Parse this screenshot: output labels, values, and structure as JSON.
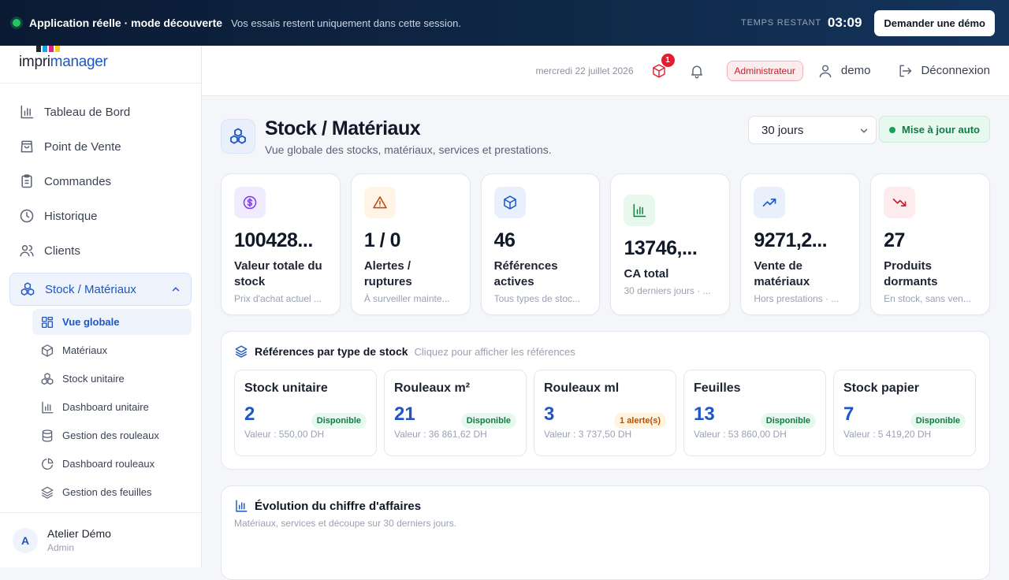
{
  "banner": {
    "title": "Application réelle · mode découverte",
    "subtitle": "Vos essais restent uniquement dans cette session.",
    "timer_label": "TEMPS RESTANT",
    "timer_value": "03:09",
    "cta": "Demander une démo"
  },
  "logo": {
    "part1": "impri",
    "part2": "manager"
  },
  "sidebar": {
    "items": [
      {
        "label": "Tableau de Bord",
        "icon": "chart-bar-icon"
      },
      {
        "label": "Point de Vente",
        "icon": "shopping-bag-icon"
      },
      {
        "label": "Commandes",
        "icon": "clipboard-icon"
      },
      {
        "label": "Historique",
        "icon": "clock-icon"
      },
      {
        "label": "Clients",
        "icon": "users-icon"
      },
      {
        "label": "Stock / Matériaux",
        "icon": "boxes-icon"
      }
    ],
    "sub_items": [
      {
        "label": "Vue globale",
        "icon": "grid-icon"
      },
      {
        "label": "Matériaux",
        "icon": "package-icon"
      },
      {
        "label": "Stock unitaire",
        "icon": "boxes-icon"
      },
      {
        "label": "Dashboard unitaire",
        "icon": "chart-bar-icon"
      },
      {
        "label": "Gestion des rouleaux",
        "icon": "database-icon"
      },
      {
        "label": "Dashboard rouleaux",
        "icon": "pie-chart-icon"
      },
      {
        "label": "Gestion des feuilles",
        "icon": "layers-icon"
      }
    ],
    "user": {
      "initial": "A",
      "name": "Atelier Démo",
      "role": "Admin"
    }
  },
  "topbar": {
    "date": "mercredi 22 juillet 2026",
    "notification_count": "1",
    "role": "Administrateur",
    "username": "demo",
    "logout": "Déconnexion"
  },
  "page": {
    "title": "Stock / Matériaux",
    "subtitle": "Vue globale des stocks, matériaux, services et prestations.",
    "period": "30 jours",
    "auto_update": "Mise à jour auto"
  },
  "kpis": [
    {
      "value": "100428...",
      "label": "Valeur totale du stock",
      "hint": "Prix d'achat actuel ...",
      "icon": "dollar-icon",
      "color": "#7c3aed",
      "bg": "#f1ebfe"
    },
    {
      "value": "1 / 0",
      "label": "Alertes / ruptures",
      "hint": "À surveiller mainte...",
      "icon": "warning-icon",
      "color": "#c2410c",
      "bg": "#fff4e5"
    },
    {
      "value": "46",
      "label": "Références actives",
      "hint": "Tous types de stoc...",
      "icon": "cube-icon",
      "color": "#1e56c4",
      "bg": "#eaf0fb"
    },
    {
      "value": "13746,...",
      "label": "CA total",
      "hint": "30 derniers jours · ...",
      "icon": "chart-bar-icon",
      "color": "#15803d",
      "bg": "#e8f8ee"
    },
    {
      "value": "9271,2...",
      "label": "Vente de matériaux",
      "hint": "Hors prestations · ...",
      "icon": "trending-up-icon",
      "color": "#1e56c4",
      "bg": "#eaf0fb"
    },
    {
      "value": "27",
      "label": "Produits dormants",
      "hint": "En stock, sans ven...",
      "icon": "trending-down-icon",
      "color": "#c21d2c",
      "bg": "#fdecee"
    }
  ],
  "refs": {
    "title": "Références par type de stock",
    "hint": "Cliquez pour afficher les références",
    "cards": [
      {
        "name": "Stock unitaire",
        "count": "2",
        "status": "Disponible",
        "value": "Valeur : 550,00 DH"
      },
      {
        "name": "Rouleaux m²",
        "count": "21",
        "status": "Disponible",
        "value": "Valeur : 36 861,62 DH"
      },
      {
        "name": "Rouleaux ml",
        "count": "3",
        "status": "1 alerte(s)",
        "value": "Valeur : 3 737,50 DH"
      },
      {
        "name": "Feuilles",
        "count": "13",
        "status": "Disponible",
        "value": "Valeur : 53 860,00 DH"
      },
      {
        "name": "Stock papier",
        "count": "7",
        "status": "Disponible",
        "value": "Valeur : 5 419,20 DH"
      }
    ]
  },
  "revenue": {
    "title": "Évolution du chiffre d'affaires",
    "subtitle": "Matériaux, services et découpe sur 30 derniers jours."
  }
}
